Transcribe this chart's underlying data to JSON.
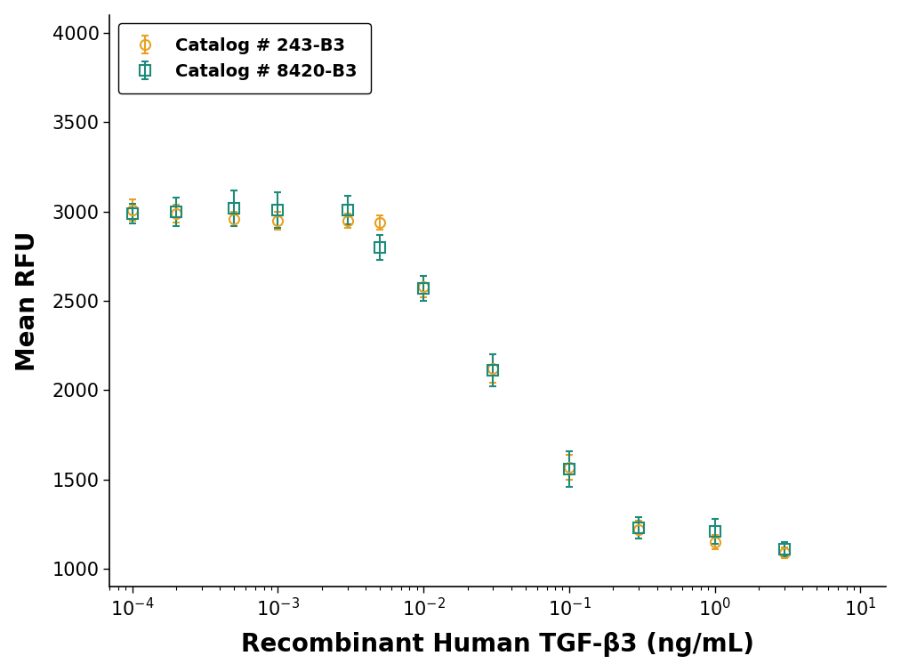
{
  "title": "",
  "xlabel": "Recombinant Human TGF-β3 (ng/mL)",
  "ylabel": "Mean RFU",
  "ylim": [
    900,
    4100
  ],
  "yticks": [
    1000,
    1500,
    2000,
    2500,
    3000,
    3500,
    4000
  ],
  "xticks": [
    0.0001,
    0.001,
    0.01,
    0.1,
    1.0,
    10.0
  ],
  "xlim": [
    7e-05,
    15.0
  ],
  "series": [
    {
      "label": "Catalog # 243-B3",
      "color": "#E8A020",
      "marker": "o",
      "marker_size": 8,
      "x": [
        0.0001,
        0.0002,
        0.0005,
        0.001,
        0.003,
        0.005,
        0.01,
        0.03,
        0.1,
        0.3,
        1.0,
        3.0
      ],
      "y": [
        3010,
        2990,
        2960,
        2950,
        2950,
        2940,
        2580,
        2120,
        1570,
        1220,
        1150,
        1090
      ],
      "yerr": [
        60,
        50,
        40,
        50,
        40,
        40,
        60,
        80,
        70,
        50,
        40,
        30
      ]
    },
    {
      "label": "Catalog # 8420-B3",
      "color": "#1D8A7A",
      "marker": "s",
      "marker_size": 8,
      "x": [
        0.0001,
        0.0002,
        0.0005,
        0.001,
        0.003,
        0.005,
        0.01,
        0.03,
        0.1,
        0.3,
        1.0,
        3.0
      ],
      "y": [
        2990,
        3000,
        3020,
        3010,
        3010,
        2800,
        2570,
        2110,
        1560,
        1230,
        1210,
        1110
      ],
      "yerr": [
        55,
        80,
        100,
        100,
        80,
        70,
        70,
        90,
        100,
        60,
        70,
        40
      ]
    }
  ],
  "legend_loc": "upper left",
  "background_color": "#ffffff",
  "spine_color": "#000000",
  "grid": false,
  "xlabel_fontsize": 20,
  "ylabel_fontsize": 20,
  "tick_fontsize": 15,
  "legend_fontsize": 14
}
